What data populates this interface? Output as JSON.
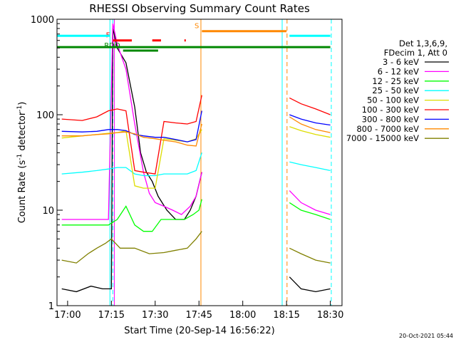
{
  "chart_data": {
    "type": "line",
    "title": "RHESSI Observing Summary Count Rates",
    "xlabel": "Start Time (20-Sep-14 16:56:22)",
    "ylabel_prefix": "Count Rate (s",
    "ylabel_sup1": "-1",
    "ylabel_mid": " detector",
    "ylabel_sup2": "-1",
    "ylabel_suffix": ")",
    "y_scale": "log",
    "ylim": [
      1,
      1000
    ],
    "xlim": [
      "16:56:22",
      "18:34:00"
    ],
    "x_ticks": [
      "17:00",
      "17:15",
      "17:30",
      "17:45",
      "18:00",
      "18:15",
      "18:30"
    ],
    "y_ticks": [
      "1",
      "10",
      "100",
      "1000"
    ],
    "grid": false,
    "legend_position": "right",
    "legend_header": [
      "Det 1,3,6,9,",
      "FDecim 1, Att 0"
    ],
    "series": [
      {
        "name": "3 - 6 keV",
        "color": "#000000",
        "points": [
          [
            "16:58",
            1.5
          ],
          [
            "17:03",
            1.4
          ],
          [
            "17:08",
            1.6
          ],
          [
            "17:12",
            1.5
          ],
          [
            "17:15",
            1.5
          ],
          [
            "17:15:30",
            800
          ],
          [
            "17:17",
            500
          ],
          [
            "17:20",
            350
          ],
          [
            "17:23",
            120
          ],
          [
            "17:25",
            40
          ],
          [
            "17:27",
            25
          ],
          [
            "17:29",
            20
          ],
          [
            "17:31",
            14
          ],
          [
            "17:34",
            10
          ],
          [
            "17:37",
            8
          ],
          [
            "17:40",
            8
          ],
          [
            "17:42",
            10
          ],
          [
            "17:44",
            14
          ],
          [
            "17:46",
            25
          ],
          [
            "18:16",
            2
          ],
          [
            "18:20",
            1.5
          ],
          [
            "18:25",
            1.4
          ],
          [
            "18:30",
            1.5
          ]
        ]
      },
      {
        "name": "6 - 12 keV",
        "color": "#ff00ff",
        "points": [
          [
            "16:58",
            8
          ],
          [
            "17:05",
            8
          ],
          [
            "17:10",
            8
          ],
          [
            "17:14",
            8
          ],
          [
            "17:15:30",
            900
          ],
          [
            "17:17",
            550
          ],
          [
            "17:20",
            300
          ],
          [
            "17:23",
            80
          ],
          [
            "17:26",
            25
          ],
          [
            "17:28",
            15
          ],
          [
            "17:30",
            12
          ],
          [
            "17:33",
            11
          ],
          [
            "17:36",
            10
          ],
          [
            "17:39",
            9
          ],
          [
            "17:42",
            11
          ],
          [
            "17:44",
            14
          ],
          [
            "17:46",
            25
          ],
          [
            "18:16",
            16
          ],
          [
            "18:20",
            12
          ],
          [
            "18:25",
            10
          ],
          [
            "18:30",
            9
          ]
        ]
      },
      {
        "name": "12 - 25 keV",
        "color": "#00ff00",
        "points": [
          [
            "16:58",
            7
          ],
          [
            "17:05",
            7
          ],
          [
            "17:10",
            7
          ],
          [
            "17:14",
            7
          ],
          [
            "17:17",
            8
          ],
          [
            "17:20",
            11
          ],
          [
            "17:23",
            7
          ],
          [
            "17:26",
            6
          ],
          [
            "17:29",
            6
          ],
          [
            "17:32",
            8
          ],
          [
            "17:36",
            8
          ],
          [
            "17:40",
            8
          ],
          [
            "17:43",
            9
          ],
          [
            "17:45",
            10
          ],
          [
            "17:46",
            13
          ],
          [
            "18:16",
            12
          ],
          [
            "18:20",
            10
          ],
          [
            "18:25",
            9
          ],
          [
            "18:30",
            8
          ]
        ]
      },
      {
        "name": "25 - 50 keV",
        "color": "#00ffff",
        "points": [
          [
            "16:58",
            24
          ],
          [
            "17:05",
            25
          ],
          [
            "17:10",
            26
          ],
          [
            "17:14",
            27
          ],
          [
            "17:17",
            28
          ],
          [
            "17:20",
            28
          ],
          [
            "17:23",
            24
          ],
          [
            "17:26",
            23
          ],
          [
            "17:30",
            23
          ],
          [
            "17:33",
            24
          ],
          [
            "17:37",
            24
          ],
          [
            "17:41",
            24
          ],
          [
            "17:44",
            26
          ],
          [
            "17:46",
            40
          ],
          [
            "18:16",
            32
          ],
          [
            "18:20",
            30
          ],
          [
            "18:25",
            28
          ],
          [
            "18:30",
            26
          ]
        ]
      },
      {
        "name": "50 - 100 keV",
        "color": "#dddd00",
        "points": [
          [
            "16:58",
            57
          ],
          [
            "17:05",
            60
          ],
          [
            "17:10",
            62
          ],
          [
            "17:14",
            64
          ],
          [
            "17:17",
            65
          ],
          [
            "17:20",
            68
          ],
          [
            "17:23",
            18
          ],
          [
            "17:26",
            17
          ],
          [
            "17:30",
            17
          ],
          [
            "17:33",
            56
          ],
          [
            "17:37",
            54
          ],
          [
            "17:41",
            52
          ],
          [
            "17:44",
            56
          ],
          [
            "17:46",
            70
          ],
          [
            "18:16",
            75
          ],
          [
            "18:20",
            68
          ],
          [
            "18:25",
            62
          ],
          [
            "18:30",
            58
          ]
        ]
      },
      {
        "name": "100 - 300 keV",
        "color": "#ff0000",
        "points": [
          [
            "16:58",
            90
          ],
          [
            "17:05",
            87
          ],
          [
            "17:10",
            95
          ],
          [
            "17:14",
            110
          ],
          [
            "17:17",
            115
          ],
          [
            "17:20",
            110
          ],
          [
            "17:23",
            26
          ],
          [
            "17:26",
            25
          ],
          [
            "17:30",
            24
          ],
          [
            "17:33",
            85
          ],
          [
            "17:37",
            82
          ],
          [
            "17:41",
            80
          ],
          [
            "17:44",
            85
          ],
          [
            "17:46",
            160
          ],
          [
            "18:16",
            150
          ],
          [
            "18:20",
            130
          ],
          [
            "18:25",
            115
          ],
          [
            "18:30",
            100
          ]
        ]
      },
      {
        "name": "300 - 800 keV",
        "color": "#0000ff",
        "points": [
          [
            "16:58",
            67
          ],
          [
            "17:05",
            66
          ],
          [
            "17:10",
            67
          ],
          [
            "17:14",
            70
          ],
          [
            "17:17",
            70
          ],
          [
            "17:20",
            68
          ],
          [
            "17:23",
            62
          ],
          [
            "17:26",
            60
          ],
          [
            "17:30",
            58
          ],
          [
            "17:33",
            58
          ],
          [
            "17:37",
            55
          ],
          [
            "17:41",
            52
          ],
          [
            "17:44",
            55
          ],
          [
            "17:46",
            110
          ],
          [
            "18:16",
            100
          ],
          [
            "18:20",
            90
          ],
          [
            "18:25",
            82
          ],
          [
            "18:30",
            78
          ]
        ]
      },
      {
        "name": "800 - 7000 keV",
        "color": "#ff8800",
        "points": [
          [
            "16:58",
            60
          ],
          [
            "17:05",
            60
          ],
          [
            "17:10",
            62
          ],
          [
            "17:14",
            63
          ],
          [
            "17:17",
            65
          ],
          [
            "17:20",
            66
          ],
          [
            "17:23",
            63
          ],
          [
            "17:26",
            58
          ],
          [
            "17:30",
            56
          ],
          [
            "17:33",
            54
          ],
          [
            "17:37",
            52
          ],
          [
            "17:41",
            48
          ],
          [
            "17:44",
            47
          ],
          [
            "17:46",
            80
          ],
          [
            "18:16",
            95
          ],
          [
            "18:20",
            80
          ],
          [
            "18:25",
            70
          ],
          [
            "18:30",
            65
          ]
        ]
      },
      {
        "name": "7000 - 15000 keV",
        "color": "#808000",
        "points": [
          [
            "16:58",
            3
          ],
          [
            "17:03",
            2.8
          ],
          [
            "17:07",
            3.5
          ],
          [
            "17:10",
            4
          ],
          [
            "17:13",
            4.5
          ],
          [
            "17:15",
            5
          ],
          [
            "17:18",
            4
          ],
          [
            "17:23",
            4
          ],
          [
            "17:28",
            3.5
          ],
          [
            "17:33",
            3.6
          ],
          [
            "17:37",
            3.8
          ],
          [
            "17:41",
            4
          ],
          [
            "17:44",
            5
          ],
          [
            "17:46",
            6
          ],
          [
            "18:16",
            4
          ],
          [
            "18:20",
            3.5
          ],
          [
            "18:25",
            3
          ],
          [
            "18:30",
            2.8
          ]
        ]
      }
    ],
    "flags": [
      {
        "label": "F",
        "color": "#ff0000",
        "segments": [
          [
            "17:15:30",
            "17:22"
          ],
          [
            "17:29",
            "17:32"
          ],
          [
            "17:40",
            "17:40:30"
          ]
        ],
        "y": 600
      },
      {
        "label": "S",
        "color": "#ff8800",
        "segments": [
          [
            "17:46",
            "18:15"
          ]
        ],
        "y": 750
      },
      {
        "label": "RDO",
        "color": "#008800",
        "segments": [
          [
            "17:19",
            "17:31"
          ]
        ],
        "y": 470
      },
      {
        "label": "",
        "color": "#00ffff",
        "segments": [
          [
            "16:56:22",
            "17:14:30"
          ],
          [
            "18:16",
            "18:30"
          ]
        ],
        "y": 670
      },
      {
        "label": "",
        "color": "#008800",
        "segments": [
          [
            "16:56:22",
            "18:30"
          ]
        ],
        "y": 510
      }
    ],
    "night_lines": [
      {
        "color": "#00ffff",
        "t": "17:14:30",
        "style": "solid"
      },
      {
        "color": "#00ffff",
        "t": "17:15:30",
        "style": "dash"
      },
      {
        "color": "#00ffff",
        "t": "18:13:30",
        "style": "solid"
      },
      {
        "color": "#00ffff",
        "t": "18:30:20",
        "style": "dash"
      },
      {
        "color": "#ff00ff",
        "t": "17:16",
        "style": "solid"
      },
      {
        "color": "#ff8800",
        "t": "17:45:40",
        "style": "solid"
      },
      {
        "color": "#ff8800",
        "t": "18:15:10",
        "style": "dash"
      }
    ]
  },
  "timestamp": "20-Oct-2021 05:44"
}
